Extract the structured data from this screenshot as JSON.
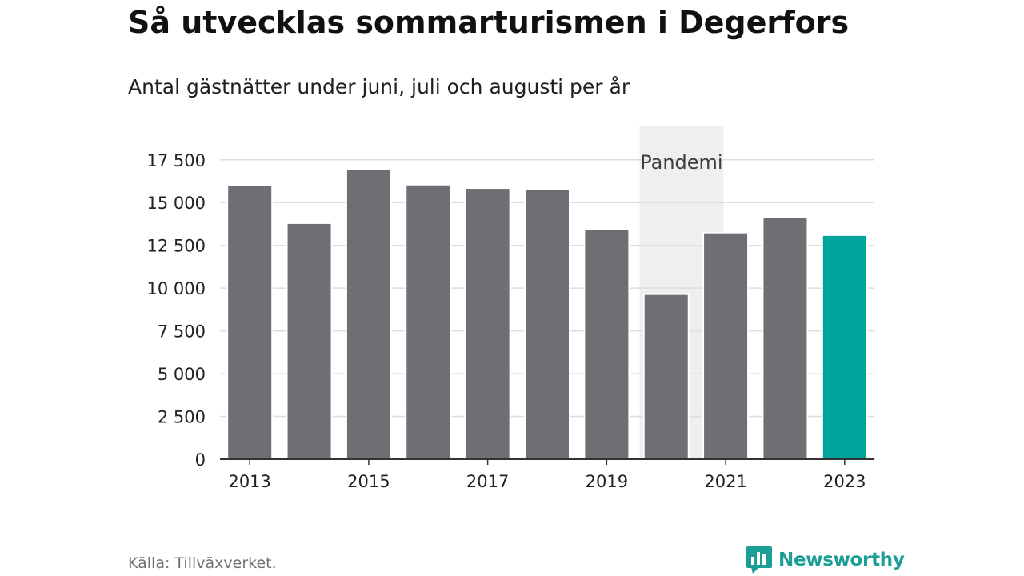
{
  "header": {
    "title": "Så utvecklas sommarturismen i Degerfors",
    "subtitle": "Antal gästnätter under juni, juli och augusti per år"
  },
  "footer": {
    "source": "Källa: Tillväxverket.",
    "brand": "Newsworthy",
    "brand_icon": "newsworthy-logo-icon"
  },
  "chart_data": {
    "type": "bar",
    "categories": [
      "2013",
      "2014",
      "2015",
      "2016",
      "2017",
      "2018",
      "2019",
      "2020",
      "2021",
      "2022",
      "2023"
    ],
    "values": [
      16000,
      13800,
      16950,
      16050,
      15850,
      15800,
      13450,
      9650,
      13250,
      14150,
      13100
    ],
    "x_tick_labels": [
      "2013",
      "2015",
      "2017",
      "2019",
      "2021",
      "2023"
    ],
    "y_ticks": [
      0,
      2500,
      5000,
      7500,
      10000,
      12500,
      15000,
      17500
    ],
    "y_tick_labels": [
      "0",
      "2 500",
      "5 000",
      "7 500",
      "10 000",
      "12 500",
      "15 000",
      "17 500"
    ],
    "ylim": [
      0,
      19500
    ],
    "grid": true,
    "highlight_category": "2023",
    "colors": {
      "bar": "#6f6e74",
      "highlight": "#00a39a",
      "band": "#efefef",
      "grid": "#dddddd",
      "axis": "#333333"
    },
    "annotations": [
      {
        "label": "Pandemi",
        "from": "2020",
        "to": "2021"
      }
    ]
  }
}
